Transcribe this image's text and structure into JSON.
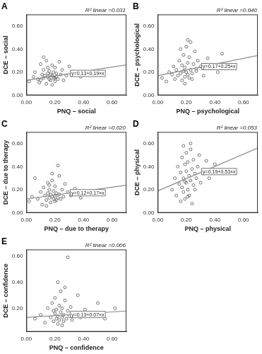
{
  "chart_data": [
    {
      "type": "scatter",
      "title": "A",
      "x_label": "PNQ – social",
      "y_label": "DCE – social",
      "annotations": [
        "R² linear =0.031",
        "y=0.13+0.19×x"
      ],
      "xlim": [
        0,
        0.7
      ],
      "xticks": [
        {
          "value": 0,
          "label": "0.00"
        },
        {
          "value": 0.2,
          "label": "0.20"
        },
        {
          "value": 0.4,
          "label": "0.40"
        },
        {
          "value": 0.6,
          "label": "0.60"
        }
      ],
      "ylim": [
        0,
        0.7
      ],
      "yticks": [
        {
          "value": 0,
          "label": "0.00"
        },
        {
          "value": 0.2,
          "label": "0.20"
        },
        {
          "value": 0.4,
          "label": "0.40"
        },
        {
          "value": 0.6,
          "label": "0.60"
        }
      ],
      "grid": false,
      "series": [
        {
          "type": "scatter",
          "color": "#555555",
          "marker": "circle-open",
          "x": [
            0.02,
            0.05,
            0.06,
            0.08,
            0.09,
            0.1,
            0.11,
            0.12,
            0.12,
            0.13,
            0.14,
            0.14,
            0.15,
            0.15,
            0.16,
            0.16,
            0.17,
            0.17,
            0.18,
            0.18,
            0.19,
            0.19,
            0.2,
            0.2,
            0.21,
            0.21,
            0.22,
            0.23,
            0.24,
            0.25,
            0.26,
            0.28,
            0.3,
            0.33,
            0.38,
            0.1,
            0.15,
            0.18,
            0.12,
            0.2
          ],
          "values": [
            0.12,
            0.16,
            0.2,
            0.14,
            0.11,
            0.27,
            0.18,
            0.15,
            0.22,
            0.17,
            0.1,
            0.3,
            0.16,
            0.19,
            0.14,
            0.21,
            0.13,
            0.18,
            0.17,
            0.26,
            0.15,
            0.2,
            0.12,
            0.24,
            0.16,
            0.19,
            0.14,
            0.29,
            0.18,
            0.22,
            0.13,
            0.17,
            0.25,
            0.2,
            0.16,
            0.13,
            0.24,
            0.09,
            0.33,
            0.15
          ]
        },
        {
          "type": "line",
          "color": "#8c8c8c",
          "line_style": "solid",
          "x": [
            0,
            0.7
          ],
          "values": [
            0.13,
            0.263
          ]
        }
      ]
    },
    {
      "type": "scatter",
      "title": "B",
      "x_label": "PNQ – psychological",
      "y_label": "DCE – psychological",
      "annotations": [
        "R² linear =0.040",
        "y=0.17+0.25×x"
      ],
      "xlim": [
        0,
        0.7
      ],
      "xticks": [
        {
          "value": 0,
          "label": "0.00"
        },
        {
          "value": 0.2,
          "label": "0.20"
        },
        {
          "value": 0.4,
          "label": "0.40"
        },
        {
          "value": 0.6,
          "label": "0.60"
        }
      ],
      "ylim": [
        0,
        0.7
      ],
      "yticks": [
        {
          "value": 0,
          "label": "0.00"
        },
        {
          "value": 0.2,
          "label": "0.20"
        },
        {
          "value": 0.4,
          "label": "0.40"
        },
        {
          "value": 0.6,
          "label": "0.60"
        }
      ],
      "grid": false,
      "series": [
        {
          "type": "scatter",
          "color": "#555555",
          "marker": "circle-open",
          "x": [
            0.03,
            0.06,
            0.08,
            0.1,
            0.11,
            0.12,
            0.13,
            0.14,
            0.15,
            0.16,
            0.17,
            0.17,
            0.18,
            0.18,
            0.19,
            0.19,
            0.2,
            0.2,
            0.21,
            0.21,
            0.22,
            0.22,
            0.23,
            0.23,
            0.24,
            0.25,
            0.26,
            0.27,
            0.28,
            0.3,
            0.32,
            0.35,
            0.38,
            0.42,
            0.45,
            0.19,
            0.21,
            0.24,
            0.16,
            0.27
          ],
          "values": [
            0.15,
            0.12,
            0.2,
            0.18,
            0.25,
            0.14,
            0.22,
            0.17,
            0.3,
            0.19,
            0.13,
            0.26,
            0.21,
            0.35,
            0.16,
            0.24,
            0.2,
            0.42,
            0.18,
            0.28,
            0.15,
            0.33,
            0.22,
            0.46,
            0.19,
            0.27,
            0.38,
            0.21,
            0.3,
            0.25,
            0.17,
            0.32,
            0.24,
            0.2,
            0.36,
            0.1,
            0.48,
            0.14,
            0.4,
            0.23
          ]
        },
        {
          "type": "line",
          "color": "#8c8c8c",
          "line_style": "solid",
          "x": [
            0,
            0.7
          ],
          "values": [
            0.17,
            0.345
          ]
        }
      ]
    },
    {
      "type": "scatter",
      "title": "C",
      "x_label": "PNQ – due to therapy",
      "y_label": "DCE – due to therapy",
      "annotations": [
        "R² linear =0.020",
        "y=0.12+0.17×x"
      ],
      "xlim": [
        0,
        0.7
      ],
      "xticks": [
        {
          "value": 0,
          "label": "0.00"
        },
        {
          "value": 0.2,
          "label": "0.20"
        },
        {
          "value": 0.4,
          "label": "0.40"
        },
        {
          "value": 0.6,
          "label": "0.60"
        }
      ],
      "ylim": [
        0,
        0.7
      ],
      "yticks": [
        {
          "value": 0,
          "label": "0.00"
        },
        {
          "value": 0.2,
          "label": "0.20"
        },
        {
          "value": 0.4,
          "label": "0.40"
        },
        {
          "value": 0.6,
          "label": "0.60"
        }
      ],
      "grid": false,
      "series": [
        {
          "type": "scatter",
          "color": "#555555",
          "marker": "circle-open",
          "x": [
            0.02,
            0.04,
            0.06,
            0.08,
            0.1,
            0.11,
            0.12,
            0.13,
            0.14,
            0.15,
            0.15,
            0.16,
            0.16,
            0.17,
            0.17,
            0.18,
            0.18,
            0.19,
            0.19,
            0.2,
            0.2,
            0.21,
            0.21,
            0.22,
            0.22,
            0.23,
            0.24,
            0.25,
            0.26,
            0.27,
            0.29,
            0.31,
            0.34,
            0.38,
            0.44,
            0.14,
            0.18,
            0.2,
            0.23,
            0.16
          ],
          "values": [
            0.1,
            0.14,
            0.3,
            0.12,
            0.18,
            0.07,
            0.22,
            0.15,
            0.11,
            0.17,
            0.26,
            0.13,
            0.2,
            0.09,
            0.16,
            0.14,
            0.34,
            0.12,
            0.19,
            0.15,
            0.23,
            0.11,
            0.17,
            0.13,
            0.41,
            0.16,
            0.12,
            0.2,
            0.14,
            0.25,
            0.18,
            0.15,
            0.21,
            0.13,
            0.19,
            0.06,
            0.28,
            0.1,
            0.32,
            0.24
          ]
        },
        {
          "type": "line",
          "color": "#8c8c8c",
          "line_style": "solid",
          "x": [
            0,
            0.7
          ],
          "values": [
            0.12,
            0.239
          ]
        }
      ]
    },
    {
      "type": "scatter",
      "title": "D",
      "x_label": "PNQ – physical",
      "y_label": "DCE – physical",
      "annotations": [
        "R² linear =0.053",
        "y=0.19+0.53×x"
      ],
      "xlim": [
        0,
        0.7
      ],
      "xticks": [
        {
          "value": 0,
          "label": "0.00"
        },
        {
          "value": 0.2,
          "label": "0.20"
        },
        {
          "value": 0.4,
          "label": "0.40"
        },
        {
          "value": 0.6,
          "label": "0.60"
        }
      ],
      "ylim": [
        0,
        0.7
      ],
      "yticks": [
        {
          "value": 0,
          "label": "0.00"
        },
        {
          "value": 0.2,
          "label": "0.20"
        },
        {
          "value": 0.4,
          "label": "0.40"
        },
        {
          "value": 0.6,
          "label": "0.60"
        }
      ],
      "grid": false,
      "series": [
        {
          "type": "scatter",
          "color": "#555555",
          "marker": "circle-open",
          "x": [
            0.1,
            0.12,
            0.13,
            0.14,
            0.15,
            0.16,
            0.16,
            0.17,
            0.17,
            0.18,
            0.18,
            0.19,
            0.19,
            0.2,
            0.2,
            0.2,
            0.21,
            0.21,
            0.22,
            0.22,
            0.23,
            0.23,
            0.24,
            0.24,
            0.25,
            0.25,
            0.26,
            0.27,
            0.28,
            0.29,
            0.3,
            0.32,
            0.34,
            0.36,
            0.4,
            0.18,
            0.21,
            0.23,
            0.19,
            0.26
          ],
          "values": [
            0.2,
            0.3,
            0.15,
            0.4,
            0.25,
            0.1,
            0.35,
            0.22,
            0.48,
            0.18,
            0.3,
            0.42,
            0.12,
            0.26,
            0.36,
            0.52,
            0.2,
            0.44,
            0.15,
            0.32,
            0.28,
            0.55,
            0.38,
            0.08,
            0.24,
            0.46,
            0.34,
            0.3,
            0.4,
            0.5,
            0.26,
            0.36,
            0.45,
            0.3,
            0.42,
            0.58,
            0.14,
            0.6,
            0.27,
            0.2
          ]
        },
        {
          "type": "line",
          "color": "#8c8c8c",
          "line_style": "solid",
          "x": [
            0,
            0.7
          ],
          "values": [
            0.19,
            0.561
          ]
        }
      ]
    },
    {
      "type": "scatter",
      "title": "E",
      "x_label": "PNQ – confidence",
      "y_label": "DCE – confidence",
      "annotations": [
        "R² linear =0.006",
        "y=0.13+0.07×x"
      ],
      "xlim": [
        0,
        0.7
      ],
      "xticks": [
        {
          "value": 0,
          "label": "0.00"
        },
        {
          "value": 0.2,
          "label": "0.20"
        },
        {
          "value": 0.4,
          "label": "0.40"
        },
        {
          "value": 0.6,
          "label": "0.60"
        }
      ],
      "ylim": [
        0.02,
        0.65
      ],
      "yticks": [
        {
          "value": 0.2,
          "label": "0.20"
        },
        {
          "value": 0.4,
          "label": "0.40"
        },
        {
          "value": 0.6,
          "label": "0.60"
        }
      ],
      "grid": false,
      "series": [
        {
          "type": "scatter",
          "color": "#555555",
          "marker": "circle-open",
          "x": [
            0.06,
            0.1,
            0.13,
            0.15,
            0.17,
            0.18,
            0.19,
            0.2,
            0.2,
            0.21,
            0.21,
            0.22,
            0.22,
            0.23,
            0.23,
            0.24,
            0.24,
            0.25,
            0.25,
            0.26,
            0.26,
            0.27,
            0.28,
            0.29,
            0.29,
            0.3,
            0.31,
            0.32,
            0.34,
            0.36,
            0.38,
            0.41,
            0.45,
            0.5,
            0.55,
            0.62,
            0.22,
            0.25,
            0.27,
            0.19
          ],
          "values": [
            0.12,
            0.15,
            0.09,
            0.2,
            0.13,
            0.24,
            0.1,
            0.16,
            0.28,
            0.12,
            0.19,
            0.08,
            0.14,
            0.22,
            0.11,
            0.17,
            0.33,
            0.13,
            0.2,
            0.1,
            0.15,
            0.26,
            0.12,
            0.59,
            0.18,
            0.14,
            0.21,
            0.11,
            0.16,
            0.3,
            0.13,
            0.19,
            0.15,
            0.24,
            0.12,
            0.2,
            0.4,
            0.07,
            0.36,
            0.18
          ]
        },
        {
          "type": "line",
          "color": "#8c8c8c",
          "line_style": "solid",
          "x": [
            0,
            0.7
          ],
          "values": [
            0.13,
            0.179
          ]
        }
      ]
    }
  ]
}
